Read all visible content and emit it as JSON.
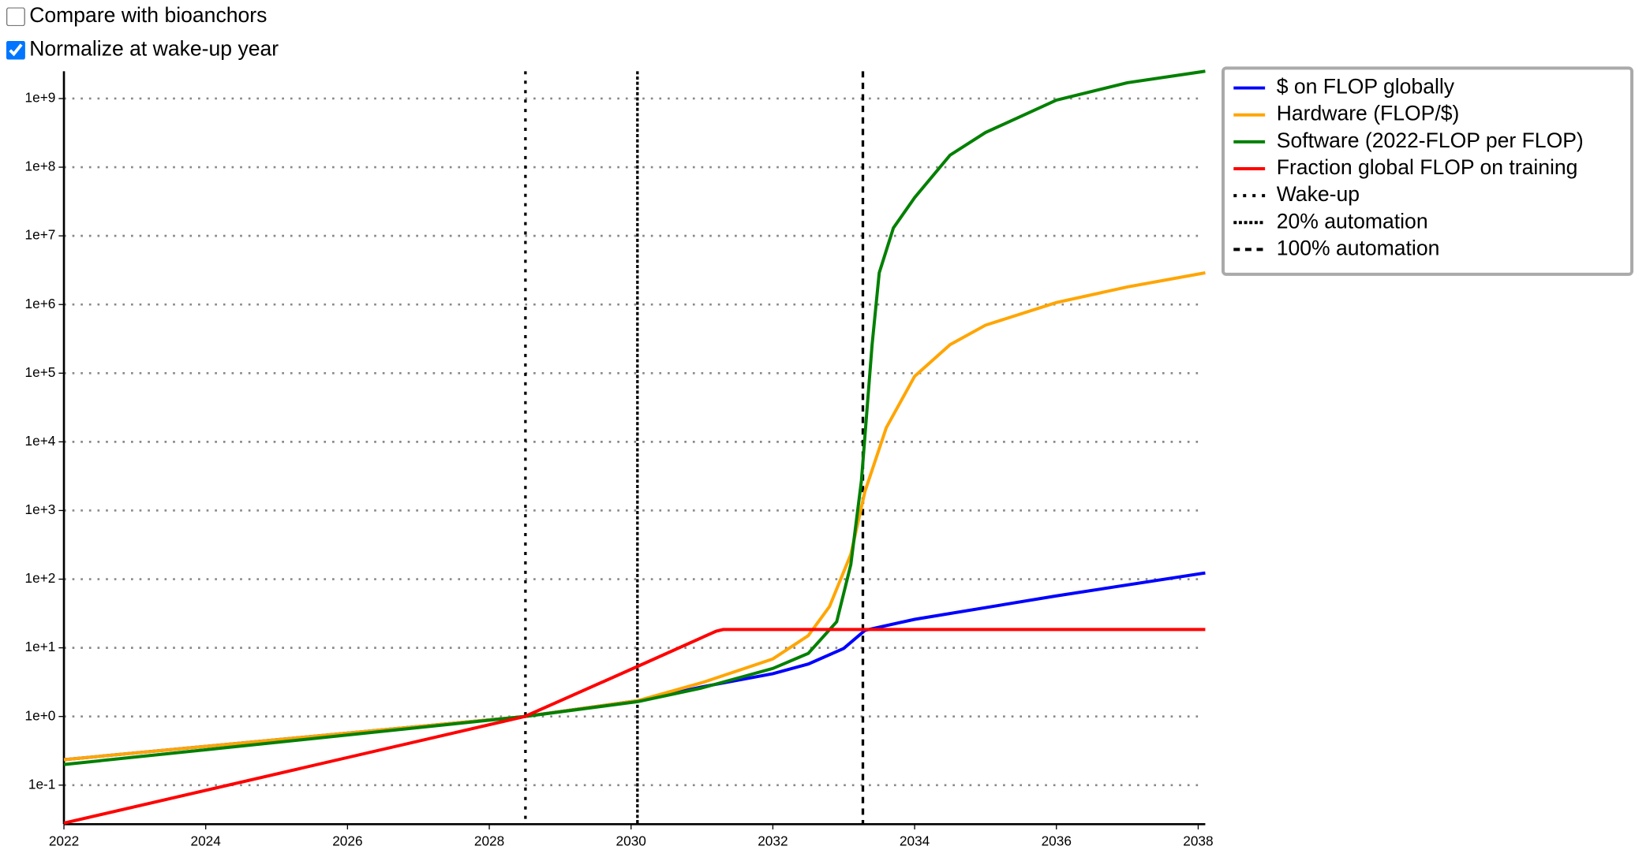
{
  "controls": [
    {
      "label": "Compare with bioanchors",
      "checked": false
    },
    {
      "label": "Normalize at wake-up year",
      "checked": true
    }
  ],
  "chart_data": {
    "type": "line",
    "log_y": true,
    "grid": true,
    "legend": "outside-right",
    "xlim": [
      2022,
      2038.1
    ],
    "xticks": [
      2022,
      2024,
      2026,
      2028,
      2030,
      2032,
      2034,
      2036,
      2038
    ],
    "ylim": [
      0.027,
      2500000000
    ],
    "yticks": [
      {
        "value": 0.1,
        "label": "1e-1"
      },
      {
        "value": 1,
        "label": "1e+0"
      },
      {
        "value": 10,
        "label": "1e+1"
      },
      {
        "value": 100,
        "label": "1e+2"
      },
      {
        "value": 1000,
        "label": "1e+3"
      },
      {
        "value": 10000,
        "label": "1e+4"
      },
      {
        "value": 100000,
        "label": "1e+5"
      },
      {
        "value": 1000000,
        "label": "1e+6"
      },
      {
        "value": 10000000,
        "label": "1e+7"
      },
      {
        "value": 100000000,
        "label": "1e+8"
      },
      {
        "value": 1000000000,
        "label": "1e+9"
      }
    ],
    "series": [
      {
        "name": "$ on FLOP globally",
        "color": "#0000ff",
        "x": [
          2022,
          2028.5,
          2030.1,
          2031,
          2032,
          2032.5,
          2033,
          2033.3,
          2034,
          2036,
          2038.1
        ],
        "values": [
          0.235,
          1,
          1.7,
          2.7,
          4.2,
          5.8,
          9.8,
          18,
          26,
          57,
          123
        ]
      },
      {
        "name": "Hardware (FLOP/$)",
        "color": "#ffa500",
        "x": [
          2022,
          2028.5,
          2030.1,
          2031,
          2032,
          2032.5,
          2032.8,
          2033.1,
          2033.3,
          2033.6,
          2034,
          2034.5,
          2035,
          2036,
          2037,
          2038.1
        ],
        "values": [
          0.235,
          1,
          1.7,
          3.1,
          6.9,
          15,
          40,
          230,
          1900,
          16000,
          90000,
          260000,
          500000,
          1070000,
          1800000,
          2900000
        ]
      },
      {
        "name": "Software (2022-FLOP per FLOP)",
        "color": "#008000",
        "x": [
          2022,
          2028.5,
          2030.1,
          2031,
          2032,
          2032.5,
          2032.9,
          2033.1,
          2033.25,
          2033.4,
          2033.5,
          2033.7,
          2034,
          2034.5,
          2035,
          2036,
          2037,
          2038.1
        ],
        "values": [
          0.2,
          1,
          1.65,
          2.6,
          5,
          8.3,
          24,
          163,
          2700,
          260000,
          2900000,
          13000000,
          36000000,
          150000000,
          320000000,
          950000000,
          1700000000,
          2500000000
        ]
      },
      {
        "name": "Fraction global FLOP on training",
        "color": "#ff0000",
        "x": [
          2022,
          2028.5,
          2030.1,
          2031.2,
          2031.3,
          2038.1
        ],
        "values": [
          0.028,
          1,
          5.4,
          17.5,
          18.5,
          18.5
        ]
      }
    ],
    "vlines": [
      {
        "name": "Wake-up",
        "x": 2028.51,
        "style": "dotted"
      },
      {
        "name": "20% automation",
        "x": 2030.09,
        "style": "dense-dotted"
      },
      {
        "name": "100% automation",
        "x": 2033.27,
        "style": "dashed"
      }
    ]
  }
}
